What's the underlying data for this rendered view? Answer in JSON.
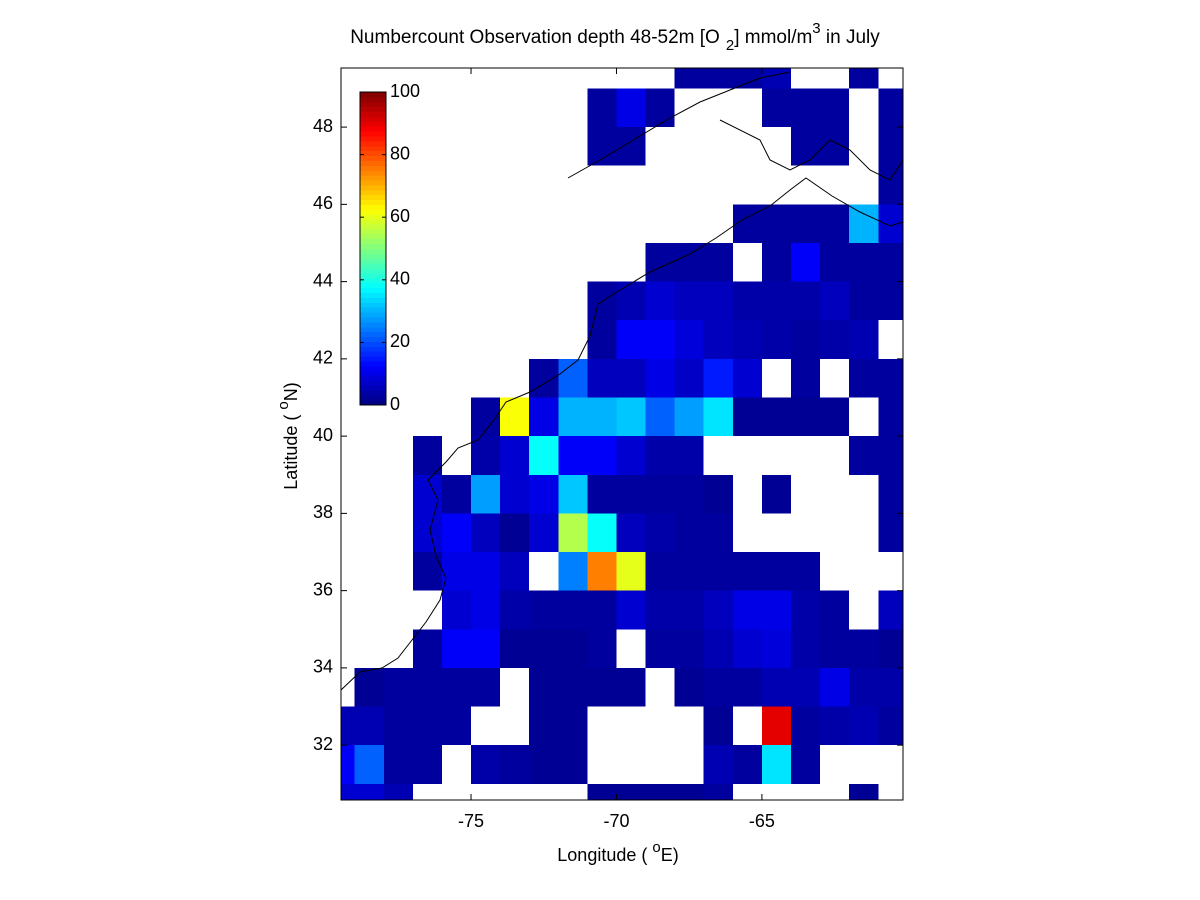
{
  "chart_data": {
    "type": "heatmap",
    "title": [
      "Numbercount Observation depth 48-52m [O",
      "2",
      "] mmol/m",
      "3",
      " in July"
    ],
    "x_label": [
      "Longitude ( ",
      "o",
      "E)"
    ],
    "y_label": [
      "Latitude ( ",
      "o",
      "N)"
    ],
    "x": [
      -79.5,
      -78.5,
      -77.5,
      -76.5,
      -75.5,
      -74.5,
      -73.5,
      -72.5,
      -71.5,
      -70.5,
      -69.5,
      -68.5,
      -67.5,
      -66.5,
      -65.5,
      -64.5,
      -63.5,
      -62.5,
      -61.5,
      -60.5
    ],
    "y": [
      30.5,
      31.5,
      32.5,
      33.5,
      34.5,
      35.5,
      36.5,
      37.5,
      38.5,
      39.5,
      40.5,
      41.5,
      42.5,
      43.5,
      44.5,
      45.5,
      46.5,
      47.5,
      48.5,
      49.5
    ],
    "z": [
      [
        8,
        8,
        5,
        null,
        null,
        null,
        null,
        null,
        null,
        2,
        2,
        2,
        2,
        3,
        null,
        null,
        null,
        null,
        2,
        null
      ],
      [
        12,
        22,
        3,
        3,
        null,
        4,
        3,
        2,
        2,
        null,
        null,
        null,
        null,
        5,
        3,
        35,
        3,
        null,
        null,
        null
      ],
      [
        5,
        5,
        3,
        3,
        3,
        null,
        null,
        2,
        2,
        null,
        null,
        null,
        null,
        2,
        null,
        90,
        3,
        4,
        5,
        3
      ],
      [
        null,
        2,
        3,
        3,
        3,
        3,
        null,
        2,
        2,
        2,
        2,
        null,
        2,
        3,
        3,
        5,
        5,
        10,
        4,
        4
      ],
      [
        null,
        null,
        null,
        3,
        12,
        12,
        2,
        2,
        2,
        3,
        null,
        3,
        3,
        5,
        8,
        9,
        4,
        3,
        3,
        2
      ],
      [
        null,
        null,
        null,
        null,
        8,
        10,
        4,
        3,
        3,
        3,
        8,
        4,
        4,
        6,
        10,
        10,
        4,
        3,
        null,
        6
      ],
      [
        null,
        null,
        null,
        3,
        10,
        10,
        6,
        null,
        25,
        75,
        60,
        3,
        3,
        3,
        3,
        3,
        3,
        null,
        null,
        null
      ],
      [
        null,
        null,
        null,
        8,
        12,
        6,
        2,
        8,
        55,
        38,
        6,
        4,
        3,
        3,
        null,
        null,
        null,
        null,
        null,
        3
      ],
      [
        null,
        null,
        null,
        8,
        3,
        28,
        8,
        10,
        32,
        3,
        3,
        3,
        3,
        2,
        null,
        2,
        null,
        null,
        null,
        3
      ],
      [
        null,
        null,
        null,
        3,
        null,
        4,
        8,
        38,
        12,
        12,
        8,
        4,
        4,
        null,
        null,
        null,
        null,
        null,
        3,
        3
      ],
      [
        null,
        null,
        null,
        null,
        null,
        3,
        62,
        10,
        30,
        30,
        32,
        22,
        28,
        35,
        2,
        2,
        2,
        2,
        null,
        3
      ],
      [
        null,
        null,
        null,
        null,
        null,
        null,
        null,
        3,
        22,
        6,
        6,
        10,
        7,
        15,
        8,
        null,
        3,
        null,
        3,
        3
      ],
      [
        null,
        null,
        null,
        null,
        null,
        null,
        null,
        null,
        null,
        3,
        12,
        12,
        9,
        6,
        5,
        4,
        3,
        4,
        5,
        null
      ],
      [
        null,
        null,
        null,
        null,
        null,
        null,
        null,
        null,
        null,
        3,
        5,
        8,
        6,
        6,
        4,
        4,
        4,
        6,
        3,
        3
      ],
      [
        null,
        null,
        null,
        null,
        null,
        null,
        null,
        null,
        null,
        null,
        null,
        3,
        3,
        3,
        null,
        3,
        12,
        3,
        3,
        3
      ],
      [
        null,
        null,
        null,
        null,
        null,
        null,
        null,
        null,
        null,
        null,
        null,
        null,
        null,
        null,
        3,
        3,
        3,
        3,
        30,
        8
      ],
      [
        null,
        null,
        null,
        null,
        null,
        null,
        null,
        null,
        null,
        null,
        null,
        null,
        null,
        null,
        null,
        null,
        null,
        null,
        null,
        3
      ],
      [
        null,
        null,
        null,
        null,
        null,
        null,
        null,
        null,
        null,
        3,
        3,
        null,
        null,
        null,
        null,
        null,
        3,
        3,
        null,
        3
      ],
      [
        null,
        null,
        null,
        null,
        null,
        null,
        null,
        null,
        null,
        3,
        10,
        3,
        null,
        null,
        null,
        3,
        3,
        3,
        null,
        3
      ],
      [
        null,
        null,
        null,
        null,
        null,
        null,
        null,
        null,
        null,
        null,
        null,
        null,
        3,
        3,
        3,
        5,
        null,
        null,
        3,
        null
      ]
    ],
    "xlim": [
      -79.47,
      -60.15
    ],
    "ylim": [
      30.58,
      49.53
    ],
    "xticks": [
      -75,
      -70,
      -65
    ],
    "yticks": [
      32,
      34,
      36,
      38,
      40,
      42,
      44,
      46,
      48
    ],
    "colormap": "jet",
    "clim": [
      0,
      100
    ],
    "colorbar_ticks": [
      0,
      20,
      40,
      60,
      80,
      100
    ]
  }
}
